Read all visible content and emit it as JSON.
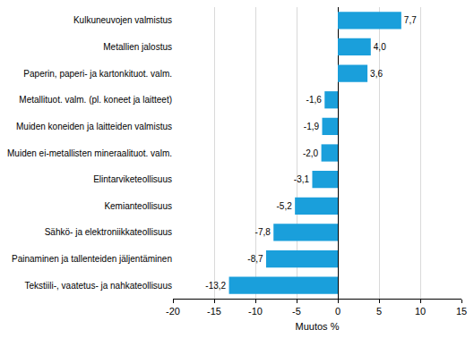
{
  "chart_data": {
    "type": "bar",
    "orientation": "horizontal",
    "categories": [
      "Kulkuneuvojen valmistus",
      "Metallien jalostus",
      "Paperin, paperi- ja kartonkituot. valm.",
      "Metallituot. valm. (pl. koneet ja laitteet)",
      "Muiden koneiden ja laitteiden valmistus",
      "Muiden ei-metallisten mineraalituot. valm.",
      "Elintarviketeollisuus",
      "Kemianteollisuus",
      "Sähkö- ja elektroniikkateollisuus",
      "Painaminen ja tallenteiden jäljentäminen",
      "Tekstiili-, vaatetus- ja nahkateollisuus"
    ],
    "values": [
      7.7,
      4.0,
      3.6,
      -1.6,
      -1.9,
      -2.0,
      -3.1,
      -5.2,
      -7.8,
      -8.7,
      -13.2
    ],
    "value_labels": [
      "7,7",
      "4,0",
      "3,6",
      "-1,6",
      "-1,9",
      "-2,0",
      "-3,1",
      "-5,2",
      "-7,8",
      "-8,7",
      "-13,2"
    ],
    "data_labels": true,
    "color": "#1a9fdb",
    "x_label": "Muutos %",
    "xlim": [
      -20,
      15
    ],
    "xticks": [
      -20,
      -15,
      -10,
      -5,
      0,
      5,
      10,
      15
    ],
    "grid": true
  }
}
